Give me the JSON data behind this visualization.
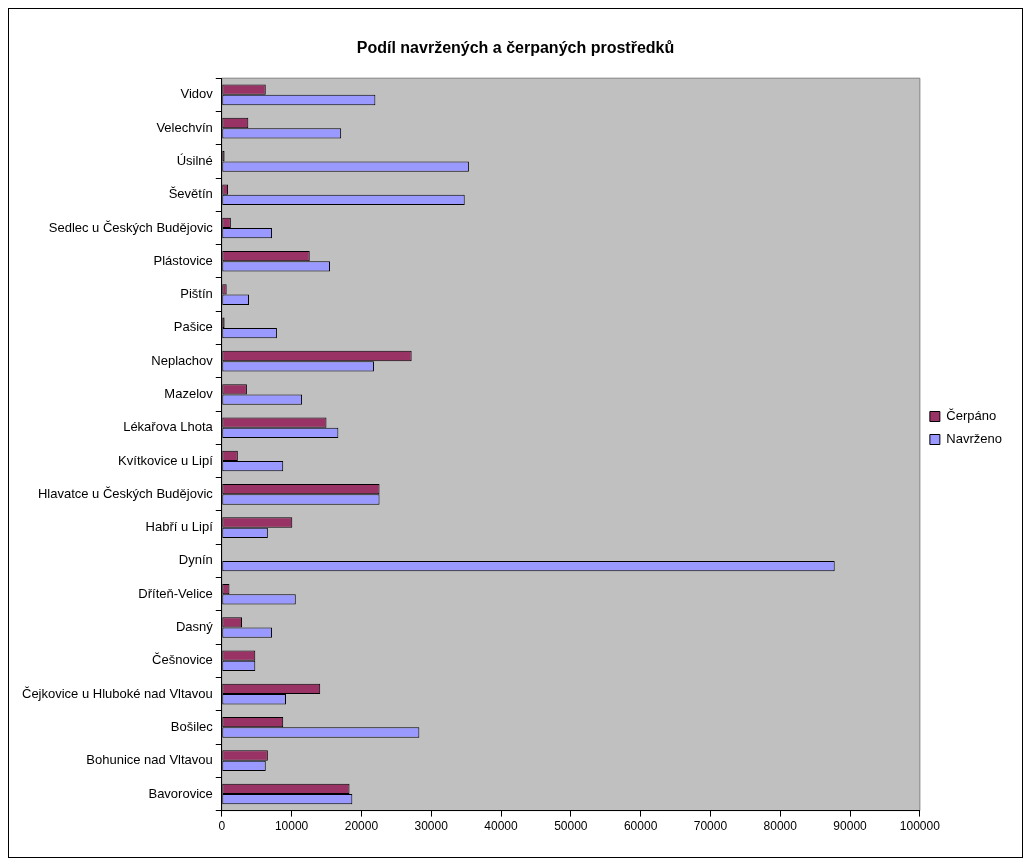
{
  "chart_data": {
    "type": "bar",
    "orientation": "horizontal",
    "title": "Podíl navržených a čerpaných prostředků",
    "categories": [
      "Vidov",
      "Velechvín",
      "Úsilné",
      "Ševětín",
      "Sedlec u Českých Budějovic",
      "Plástovice",
      "Pištín",
      "Pašice",
      "Neplachov",
      "Mazelov",
      "Lékařova Lhota",
      "Kvítkovice u Lipí",
      "Hlavatce u Českých Budějovic",
      "Habří u Lipí",
      "Dynín",
      "Dříteň-Velice",
      "Dasný",
      "Češnovice",
      "Čejkovice u Hluboké nad Vltavou",
      "Bošilec",
      "Bohunice nad Vltavou",
      "Bavorovice"
    ],
    "series": [
      {
        "name": "Čerpáno",
        "color": "#993366",
        "values": [
          6300,
          3800,
          400,
          900,
          1300,
          12600,
          700,
          400,
          27200,
          3600,
          15000,
          2300,
          22600,
          10100,
          null,
          1100,
          2900,
          4800,
          14100,
          8800,
          6600,
          18300
        ]
      },
      {
        "name": "Navrženo",
        "color": "#9999ff",
        "values": [
          22000,
          17100,
          35400,
          34800,
          7200,
          15500,
          3900,
          7900,
          21800,
          11500,
          16700,
          8800,
          22600,
          6600,
          87800,
          10600,
          7200,
          4800,
          9200,
          28300,
          6300,
          18700
        ]
      }
    ],
    "xlim": [
      0,
      100000
    ],
    "xticks": [
      0,
      10000,
      20000,
      30000,
      40000,
      50000,
      60000,
      70000,
      80000,
      90000,
      100000
    ],
    "legend": "right",
    "grid": false
  }
}
